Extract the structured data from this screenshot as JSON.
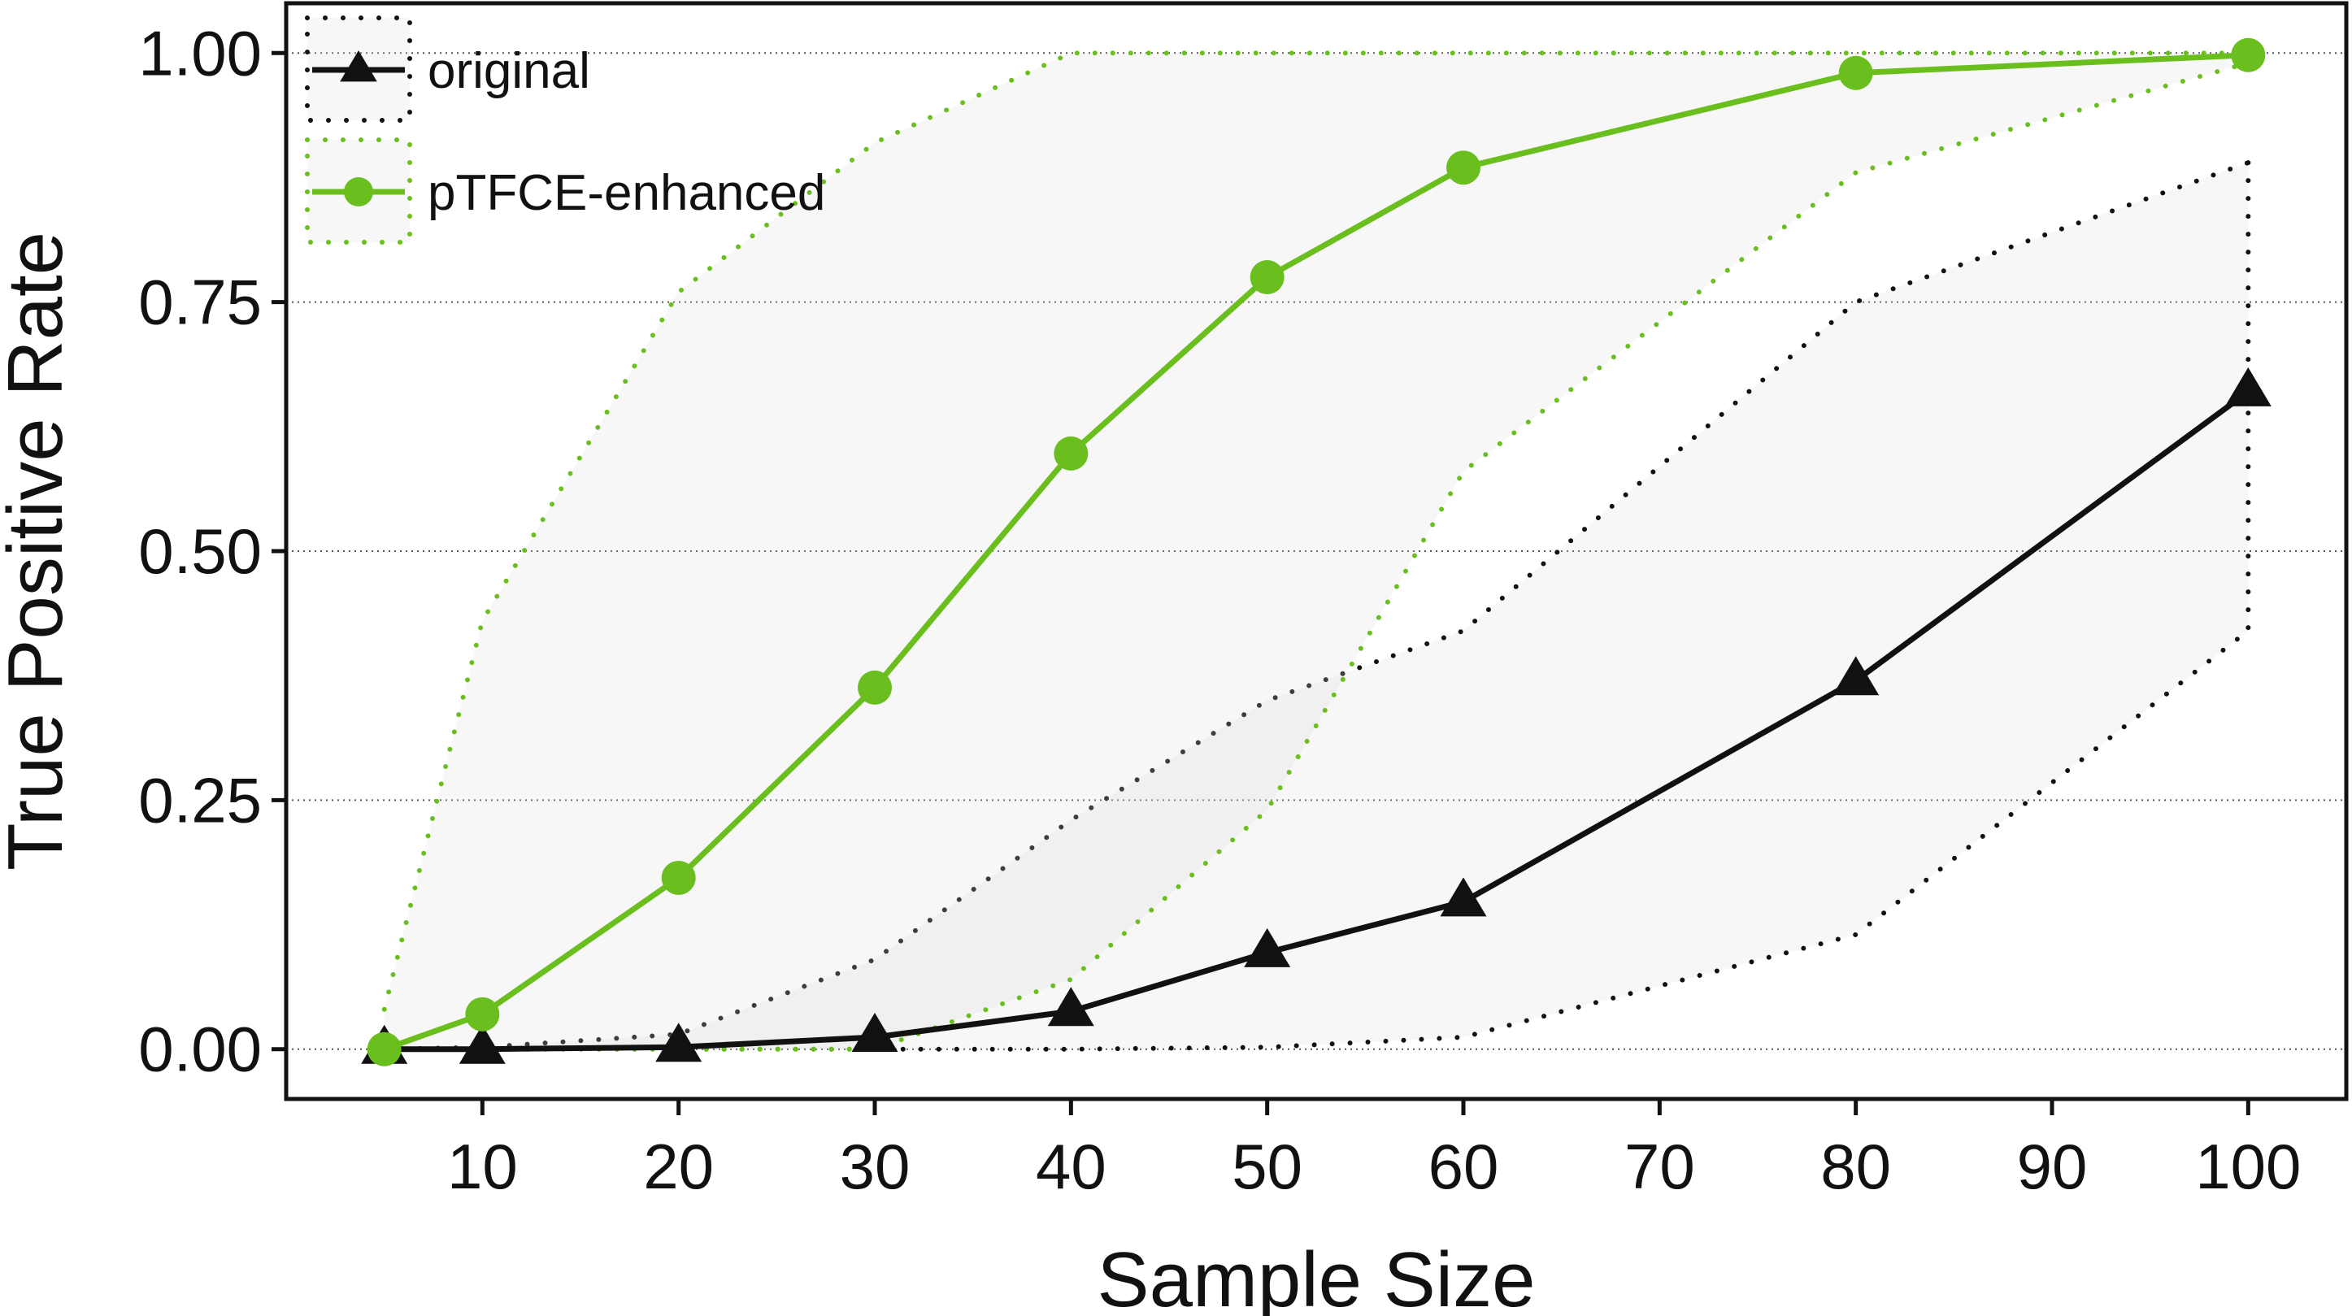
{
  "chart_data": {
    "type": "line",
    "title": "",
    "xlabel": "Sample Size",
    "ylabel": "True Positive Rate",
    "xlim": [
      0,
      105
    ],
    "ylim": [
      -0.05,
      1.05
    ],
    "xticks": [
      10,
      20,
      30,
      40,
      50,
      60,
      70,
      80,
      90,
      100
    ],
    "xtick_labels": [
      "10",
      "20",
      "30",
      "40",
      "50",
      "60",
      "70",
      "80",
      "90",
      "100"
    ],
    "yticks": [
      0.0,
      0.25,
      0.5,
      0.75,
      1.0
    ],
    "ytick_labels": [
      "0.00",
      "0.25",
      "0.50",
      "0.75",
      "1.00"
    ],
    "grid": "horizontal dotted",
    "legend_position": "top-left",
    "x": [
      5,
      10,
      20,
      30,
      40,
      50,
      60,
      80,
      100
    ],
    "series": [
      {
        "name": "original",
        "marker": "triangle",
        "color": "#111111",
        "values": [
          0.0,
          0.0,
          0.002,
          0.012,
          0.038,
          0.097,
          0.148,
          0.37,
          0.66
        ],
        "band_upper": [
          0.0,
          0.002,
          0.015,
          0.09,
          0.23,
          0.35,
          0.42,
          0.75,
          0.89
        ],
        "band_lower": [
          0.0,
          0.0,
          0.0,
          0.0,
          0.0,
          0.002,
          0.012,
          0.115,
          0.42
        ]
      },
      {
        "name": "pTFCE-enhanced",
        "marker": "circle",
        "color": "#6abf1e",
        "values": [
          0.0,
          0.035,
          0.172,
          0.363,
          0.598,
          0.775,
          0.885,
          0.98,
          0.998
        ],
        "band_upper": [
          0.04,
          0.43,
          0.76,
          0.91,
          1.0,
          1.0,
          1.0,
          1.0,
          1.0
        ],
        "band_lower": [
          0.0,
          0.0,
          0.0,
          0.0,
          0.07,
          0.24,
          0.58,
          0.88,
          0.99
        ]
      }
    ]
  }
}
